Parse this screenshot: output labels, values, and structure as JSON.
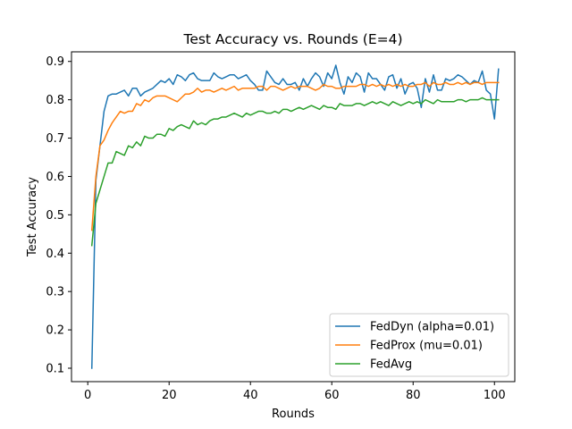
{
  "chart_data": {
    "type": "line",
    "title": "Test Accuracy vs. Rounds (E=4)",
    "xlabel": "Rounds",
    "ylabel": "Test Accuracy",
    "xlim": [
      -4,
      105
    ],
    "ylim": [
      0.065,
      0.925
    ],
    "xticks": [
      0,
      20,
      40,
      60,
      80,
      100
    ],
    "yticks": [
      0.1,
      0.2,
      0.3,
      0.4,
      0.5,
      0.6,
      0.7,
      0.8,
      0.9
    ],
    "grid": false,
    "legend_position": "lower-right",
    "series": [
      {
        "name": "FedDyn (alpha=0.01)",
        "color": "#1f77b4",
        "values": [
          0.1,
          0.59,
          0.68,
          0.77,
          0.81,
          0.815,
          0.815,
          0.82,
          0.825,
          0.81,
          0.83,
          0.83,
          0.81,
          0.82,
          0.825,
          0.83,
          0.84,
          0.85,
          0.845,
          0.855,
          0.84,
          0.865,
          0.86,
          0.85,
          0.865,
          0.87,
          0.855,
          0.85,
          0.85,
          0.85,
          0.87,
          0.86,
          0.855,
          0.86,
          0.865,
          0.865,
          0.855,
          0.86,
          0.865,
          0.85,
          0.84,
          0.825,
          0.825,
          0.875,
          0.86,
          0.845,
          0.84,
          0.855,
          0.84,
          0.84,
          0.845,
          0.825,
          0.855,
          0.835,
          0.855,
          0.87,
          0.86,
          0.835,
          0.87,
          0.855,
          0.89,
          0.845,
          0.815,
          0.86,
          0.845,
          0.87,
          0.86,
          0.82,
          0.87,
          0.855,
          0.855,
          0.84,
          0.825,
          0.86,
          0.865,
          0.83,
          0.855,
          0.815,
          0.84,
          0.845,
          0.83,
          0.78,
          0.855,
          0.82,
          0.865,
          0.825,
          0.825,
          0.855,
          0.85,
          0.855,
          0.865,
          0.86,
          0.85,
          0.84,
          0.85,
          0.845,
          0.875,
          0.825,
          0.815,
          0.75,
          0.88
        ]
      },
      {
        "name": "FedProx (mu=0.01)",
        "color": "#ff7f0e",
        "values": [
          0.46,
          0.6,
          0.68,
          0.695,
          0.72,
          0.74,
          0.755,
          0.77,
          0.765,
          0.77,
          0.77,
          0.79,
          0.785,
          0.8,
          0.795,
          0.805,
          0.81,
          0.81,
          0.81,
          0.805,
          0.8,
          0.795,
          0.805,
          0.815,
          0.815,
          0.82,
          0.83,
          0.82,
          0.825,
          0.825,
          0.82,
          0.825,
          0.83,
          0.825,
          0.83,
          0.835,
          0.825,
          0.83,
          0.83,
          0.83,
          0.83,
          0.835,
          0.835,
          0.825,
          0.835,
          0.835,
          0.83,
          0.825,
          0.83,
          0.835,
          0.83,
          0.835,
          0.835,
          0.835,
          0.83,
          0.825,
          0.83,
          0.84,
          0.835,
          0.835,
          0.83,
          0.83,
          0.835,
          0.835,
          0.835,
          0.835,
          0.84,
          0.84,
          0.835,
          0.84,
          0.835,
          0.84,
          0.835,
          0.84,
          0.835,
          0.84,
          0.835,
          0.84,
          0.835,
          0.835,
          0.84,
          0.84,
          0.845,
          0.835,
          0.845,
          0.84,
          0.84,
          0.845,
          0.84,
          0.84,
          0.845,
          0.84,
          0.845,
          0.84,
          0.845,
          0.845,
          0.84,
          0.845,
          0.845,
          0.845,
          0.845
        ]
      },
      {
        "name": "FedAvg",
        "color": "#2ca02c",
        "values": [
          0.42,
          0.53,
          0.565,
          0.6,
          0.635,
          0.635,
          0.665,
          0.66,
          0.655,
          0.68,
          0.675,
          0.69,
          0.68,
          0.705,
          0.7,
          0.7,
          0.71,
          0.71,
          0.705,
          0.725,
          0.72,
          0.73,
          0.735,
          0.73,
          0.725,
          0.745,
          0.735,
          0.74,
          0.735,
          0.745,
          0.75,
          0.75,
          0.755,
          0.755,
          0.76,
          0.765,
          0.76,
          0.755,
          0.765,
          0.76,
          0.765,
          0.77,
          0.77,
          0.765,
          0.765,
          0.77,
          0.765,
          0.775,
          0.775,
          0.77,
          0.775,
          0.78,
          0.775,
          0.78,
          0.785,
          0.78,
          0.775,
          0.785,
          0.78,
          0.78,
          0.775,
          0.79,
          0.785,
          0.785,
          0.785,
          0.79,
          0.79,
          0.785,
          0.79,
          0.795,
          0.79,
          0.795,
          0.79,
          0.785,
          0.795,
          0.79,
          0.785,
          0.79,
          0.795,
          0.79,
          0.795,
          0.79,
          0.8,
          0.795,
          0.79,
          0.8,
          0.795,
          0.795,
          0.795,
          0.795,
          0.8,
          0.8,
          0.795,
          0.8,
          0.8,
          0.8,
          0.805,
          0.8,
          0.8,
          0.8,
          0.8
        ]
      }
    ]
  }
}
